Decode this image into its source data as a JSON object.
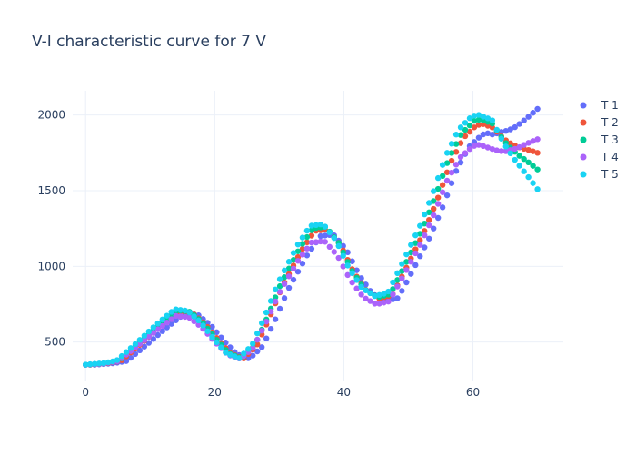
{
  "chart_data": {
    "type": "scatter",
    "title": "V-I characteristic curve for 7 V",
    "xlabel": "",
    "ylabel": "",
    "xlim": [
      -2,
      74
    ],
    "ylim": [
      240,
      2160
    ],
    "x_ticks": [
      0,
      20,
      40,
      60
    ],
    "y_ticks": [
      500,
      1000,
      1500,
      2000
    ],
    "grid": true,
    "legend": "top-right",
    "series": [
      {
        "name": "T 1",
        "color": "#636efa",
        "shift": 1.4,
        "amp": 1.0,
        "tail": 2040
      },
      {
        "name": " T 2",
        "color": "#EF553B",
        "shift": 0.5,
        "amp": 1.04,
        "tail": 1750
      },
      {
        "name": "T 3",
        "color": "#00cc96",
        "shift": 0.2,
        "amp": 1.06,
        "tail": 1640
      },
      {
        "name": "T 4",
        "color": "#ab63fa",
        "shift": 0.0,
        "amp": 0.95,
        "tail": 1840
      },
      {
        "name": "T 5",
        "color": "#19d3f3",
        "shift": -0.2,
        "amp": 1.08,
        "tail": 1510
      }
    ],
    "base_curve": [
      [
        0,
        350
      ],
      [
        3,
        360
      ],
      [
        5,
        375
      ],
      [
        8,
        480
      ],
      [
        11,
        590
      ],
      [
        14,
        690
      ],
      [
        16,
        680
      ],
      [
        18,
        610
      ],
      [
        20,
        510
      ],
      [
        22,
        420
      ],
      [
        24,
        390
      ],
      [
        26,
        470
      ],
      [
        28,
        650
      ],
      [
        30,
        850
      ],
      [
        33,
        1080
      ],
      [
        35,
        1200
      ],
      [
        37,
        1210
      ],
      [
        39,
        1110
      ],
      [
        41,
        940
      ],
      [
        43,
        820
      ],
      [
        45,
        770
      ],
      [
        47,
        790
      ],
      [
        49,
        950
      ],
      [
        52,
        1200
      ],
      [
        54,
        1400
      ],
      [
        56,
        1630
      ],
      [
        58,
        1790
      ],
      [
        60,
        1870
      ],
      [
        61,
        1880
      ],
      [
        63,
        1850
      ],
      [
        65,
        1800
      ],
      [
        67,
        1780
      ],
      [
        70,
        1800
      ]
    ]
  }
}
